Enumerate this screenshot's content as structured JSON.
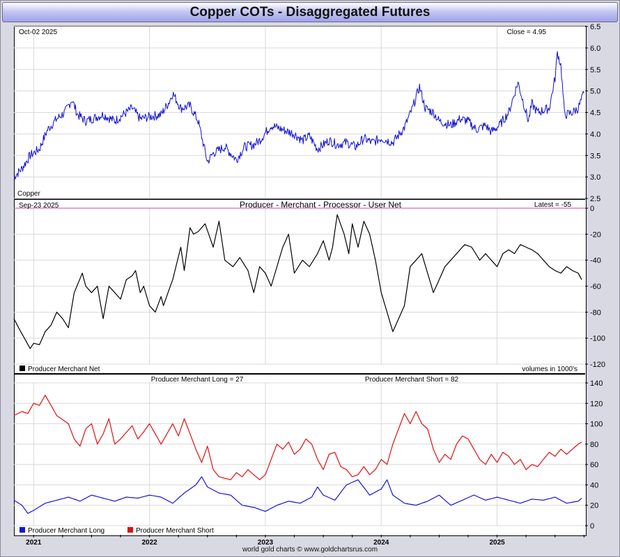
{
  "title": "Copper COTs - Disaggregated Futures",
  "footer": "world gold charts © www.goldchartsrus.com",
  "colors": {
    "price": "#1010d0",
    "net": "#000000",
    "long": "#1414d8",
    "short": "#e01010",
    "zero_line": "#cc44aa",
    "grid": "#d8d8d8"
  },
  "chart_data": [
    {
      "type": "line",
      "panel": "price",
      "top_left_label": "Oct-02  2025",
      "top_right_label": "Close = 4.95",
      "bottom_left_label": "Copper",
      "ylim": [
        2.5,
        6.5
      ],
      "y_ticks": [
        "2.5",
        "3.0",
        "3.5",
        "4.0",
        "4.5",
        "5.0",
        "5.5",
        "6.0",
        "6.5"
      ],
      "x": [
        2020.83,
        2020.9,
        2020.97,
        2021.05,
        2021.12,
        2021.2,
        2021.27,
        2021.33,
        2021.38,
        2021.45,
        2021.55,
        2021.6,
        2021.7,
        2021.8,
        2021.85,
        2021.92,
        2022.0,
        2022.1,
        2022.17,
        2022.2,
        2022.27,
        2022.35,
        2022.42,
        2022.5,
        2022.55,
        2022.65,
        2022.75,
        2022.82,
        2022.9,
        2022.95,
        2023.05,
        2023.15,
        2023.25,
        2023.32,
        2023.38,
        2023.45,
        2023.55,
        2023.62,
        2023.7,
        2023.78,
        2023.85,
        2023.92,
        2024.0,
        2024.1,
        2024.2,
        2024.27,
        2024.33,
        2024.38,
        2024.45,
        2024.5,
        2024.6,
        2024.68,
        2024.75,
        2024.82,
        2024.9,
        2024.95,
        2025.02,
        2025.1,
        2025.18,
        2025.27,
        2025.3,
        2025.35,
        2025.45,
        2025.5,
        2025.52,
        2025.55,
        2025.58,
        2025.6,
        2025.65,
        2025.7,
        2025.75
      ],
      "values": [
        3.0,
        3.2,
        3.5,
        3.65,
        4.1,
        4.35,
        4.5,
        4.8,
        4.45,
        4.3,
        4.4,
        4.45,
        4.3,
        4.5,
        4.6,
        4.35,
        4.4,
        4.45,
        4.75,
        4.95,
        4.6,
        4.65,
        4.3,
        3.35,
        3.55,
        3.7,
        3.4,
        3.7,
        3.75,
        3.85,
        4.2,
        4.1,
        4.0,
        3.85,
        3.95,
        3.65,
        3.85,
        3.75,
        3.8,
        3.7,
        3.9,
        3.8,
        3.9,
        3.8,
        4.15,
        4.6,
        5.1,
        4.6,
        4.5,
        4.3,
        4.2,
        4.35,
        4.3,
        4.1,
        4.2,
        4.05,
        4.2,
        4.5,
        5.2,
        4.3,
        4.7,
        4.5,
        4.6,
        5.3,
        5.9,
        5.6,
        4.5,
        4.45,
        4.5,
        4.6,
        4.95
      ]
    },
    {
      "type": "line",
      "panel": "net",
      "title": "Producer - Merchant - Processor - User Net",
      "top_left_label": "Sep-23  2025",
      "top_right_label": "Latest = -55",
      "bottom_right_label": "volumes in 1000's",
      "ylim": [
        -120,
        0
      ],
      "y_ticks": [
        "0",
        "-20",
        "-40",
        "-60",
        "-80",
        "-100",
        "-120"
      ],
      "series": [
        {
          "name": "Producer Merchant Net",
          "x": [
            2020.83,
            2020.87,
            2020.92,
            2020.97,
            2021.0,
            2021.05,
            2021.1,
            2021.15,
            2021.2,
            2021.25,
            2021.3,
            2021.35,
            2021.42,
            2021.45,
            2021.5,
            2021.55,
            2021.6,
            2021.65,
            2021.7,
            2021.75,
            2021.8,
            2021.85,
            2021.88,
            2021.92,
            2021.95,
            2022.0,
            2022.05,
            2022.1,
            2022.12,
            2022.2,
            2022.27,
            2022.3,
            2022.35,
            2022.38,
            2022.42,
            2022.48,
            2022.55,
            2022.6,
            2022.65,
            2022.72,
            2022.78,
            2022.85,
            2022.9,
            2022.95,
            2023.0,
            2023.05,
            2023.1,
            2023.15,
            2023.2,
            2023.25,
            2023.32,
            2023.38,
            2023.45,
            2023.5,
            2023.55,
            2023.58,
            2023.62,
            2023.68,
            2023.72,
            2023.75,
            2023.8,
            2023.85,
            2023.9,
            2023.95,
            2024.0,
            2024.05,
            2024.1,
            2024.15,
            2024.2,
            2024.25,
            2024.3,
            2024.35,
            2024.4,
            2024.45,
            2024.5,
            2024.55,
            2024.6,
            2024.65,
            2024.72,
            2024.78,
            2024.85,
            2024.9,
            2024.95,
            2025.0,
            2025.05,
            2025.1,
            2025.15,
            2025.2,
            2025.25,
            2025.3,
            2025.35,
            2025.4,
            2025.45,
            2025.5,
            2025.55,
            2025.6,
            2025.65,
            2025.7,
            2025.73
          ],
          "values": [
            -85,
            -92,
            -100,
            -108,
            -104,
            -105,
            -95,
            -90,
            -80,
            -85,
            -92,
            -65,
            -50,
            -60,
            -65,
            -60,
            -85,
            -60,
            -65,
            -70,
            -55,
            -52,
            -48,
            -65,
            -60,
            -75,
            -80,
            -68,
            -75,
            -55,
            -30,
            -48,
            -15,
            -20,
            -18,
            -12,
            -30,
            -10,
            -40,
            -45,
            -38,
            -48,
            -65,
            -45,
            -50,
            -60,
            -45,
            -30,
            -20,
            -50,
            -40,
            -45,
            -35,
            -25,
            -40,
            -30,
            -5,
            -20,
            -35,
            -12,
            -30,
            -10,
            -20,
            -40,
            -65,
            -80,
            -95,
            -85,
            -75,
            -45,
            -40,
            -35,
            -50,
            -65,
            -55,
            -45,
            -40,
            -35,
            -28,
            -30,
            -40,
            -35,
            -40,
            -45,
            -35,
            -32,
            -35,
            -28,
            -30,
            -32,
            -35,
            -40,
            -45,
            -48,
            -50,
            -45,
            -48,
            -50,
            -55
          ]
        }
      ]
    },
    {
      "type": "line",
      "panel": "long_short",
      "long_label": "Producer Merchant Long = 27",
      "short_label": "Producer Merchant Short = 82",
      "ylim": [
        0,
        140
      ],
      "y_ticks": [
        "0",
        "20",
        "40",
        "60",
        "80",
        "100",
        "120",
        "140"
      ],
      "x_ticks": [
        "2021",
        "2022",
        "2023",
        "2024",
        "2025"
      ],
      "series": [
        {
          "name": "Producer Merchant Long",
          "x": [
            2020.83,
            2020.9,
            2020.95,
            2021.0,
            2021.1,
            2021.2,
            2021.3,
            2021.4,
            2021.5,
            2021.6,
            2021.7,
            2021.8,
            2021.9,
            2022.0,
            2022.1,
            2022.2,
            2022.3,
            2022.4,
            2022.45,
            2022.5,
            2022.6,
            2022.7,
            2022.8,
            2022.9,
            2023.0,
            2023.1,
            2023.2,
            2023.3,
            2023.4,
            2023.45,
            2023.5,
            2023.6,
            2023.7,
            2023.8,
            2023.9,
            2024.0,
            2024.05,
            2024.1,
            2024.2,
            2024.3,
            2024.4,
            2024.5,
            2024.6,
            2024.7,
            2024.8,
            2024.9,
            2025.0,
            2025.1,
            2025.2,
            2025.3,
            2025.4,
            2025.5,
            2025.6,
            2025.7,
            2025.73
          ],
          "values": [
            25,
            20,
            12,
            15,
            22,
            25,
            28,
            24,
            30,
            27,
            24,
            28,
            27,
            30,
            28,
            22,
            32,
            40,
            48,
            38,
            32,
            30,
            20,
            18,
            14,
            20,
            24,
            22,
            28,
            38,
            30,
            25,
            40,
            45,
            30,
            36,
            45,
            30,
            22,
            20,
            24,
            30,
            20,
            25,
            30,
            25,
            28,
            25,
            22,
            26,
            25,
            28,
            22,
            24,
            27
          ]
        },
        {
          "name": "Producer Merchant Short",
          "x": [
            2020.83,
            2020.9,
            2020.95,
            2021.0,
            2021.05,
            2021.1,
            2021.2,
            2021.3,
            2021.35,
            2021.4,
            2021.45,
            2021.5,
            2021.55,
            2021.6,
            2021.65,
            2021.7,
            2021.75,
            2021.85,
            2021.9,
            2021.95,
            2022.0,
            2022.05,
            2022.1,
            2022.15,
            2022.2,
            2022.25,
            2022.3,
            2022.4,
            2022.45,
            2022.5,
            2022.55,
            2022.6,
            2022.7,
            2022.75,
            2022.8,
            2022.85,
            2022.95,
            2023.0,
            2023.05,
            2023.1,
            2023.15,
            2023.2,
            2023.25,
            2023.3,
            2023.35,
            2023.4,
            2023.45,
            2023.5,
            2023.55,
            2023.6,
            2023.65,
            2023.7,
            2023.75,
            2023.8,
            2023.85,
            2023.9,
            2023.95,
            2024.0,
            2024.05,
            2024.1,
            2024.15,
            2024.2,
            2024.25,
            2024.3,
            2024.35,
            2024.4,
            2024.45,
            2024.5,
            2024.55,
            2024.6,
            2024.65,
            2024.7,
            2024.75,
            2024.8,
            2024.85,
            2024.9,
            2024.95,
            2025.0,
            2025.05,
            2025.1,
            2025.15,
            2025.2,
            2025.25,
            2025.3,
            2025.35,
            2025.4,
            2025.45,
            2025.5,
            2025.55,
            2025.6,
            2025.65,
            2025.7,
            2025.73
          ],
          "values": [
            108,
            112,
            110,
            120,
            118,
            128,
            108,
            100,
            85,
            78,
            95,
            100,
            80,
            90,
            105,
            80,
            85,
            98,
            85,
            92,
            100,
            90,
            80,
            90,
            100,
            88,
            105,
            75,
            62,
            78,
            55,
            48,
            45,
            52,
            48,
            55,
            45,
            50,
            65,
            80,
            75,
            82,
            70,
            75,
            85,
            80,
            65,
            55,
            70,
            72,
            58,
            55,
            48,
            50,
            58,
            50,
            55,
            65,
            60,
            80,
            95,
            110,
            100,
            112,
            100,
            95,
            75,
            62,
            70,
            65,
            80,
            88,
            85,
            75,
            65,
            60,
            70,
            62,
            72,
            68,
            60,
            65,
            55,
            60,
            58,
            65,
            72,
            68,
            75,
            70,
            75,
            80,
            82
          ]
        }
      ]
    }
  ]
}
